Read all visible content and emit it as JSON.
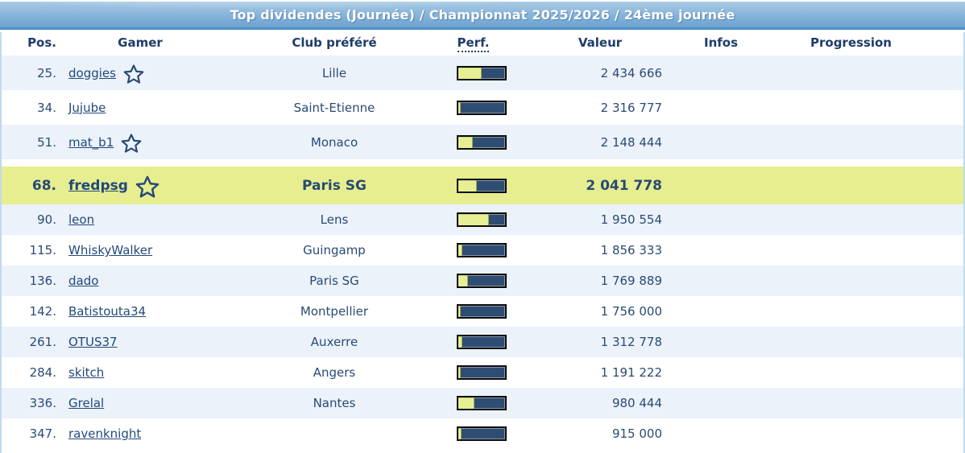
{
  "title": "Top dividendes (Journée) / Championnat 2025/2026 / 24ème journée",
  "columns": [
    {
      "key": "pos",
      "label": "Pos."
    },
    {
      "key": "gamer",
      "label": "Gamer"
    },
    {
      "key": "club",
      "label": "Club préféré"
    },
    {
      "key": "perf",
      "label": "Perf."
    },
    {
      "key": "valeur",
      "label": "Valeur"
    },
    {
      "key": "infos",
      "label": "Infos"
    },
    {
      "key": "progression",
      "label": "Progression"
    }
  ],
  "rows": [
    {
      "pos": "25.",
      "gamer": "doggies",
      "star": true,
      "club": "Lille",
      "perf_pct": 50,
      "valeur": "2 434 666",
      "infos": "",
      "progression": "",
      "highlight": false
    },
    {
      "pos": "34.",
      "gamer": "Jujube",
      "star": false,
      "club": "Saint-Etienne",
      "perf_pct": 6,
      "valeur": "2 316 777",
      "infos": "",
      "progression": "",
      "highlight": false
    },
    {
      "pos": "51.",
      "gamer": "mat_b1",
      "star": true,
      "club": "Monaco",
      "perf_pct": 32,
      "valeur": "2 148 444",
      "infos": "",
      "progression": "",
      "highlight": false
    },
    {
      "pos": "68.",
      "gamer": "fredpsg",
      "star": true,
      "club": "Paris SG",
      "perf_pct": 40,
      "valeur": "2 041 778",
      "infos": "",
      "progression": "",
      "highlight": true
    },
    {
      "pos": "90.",
      "gamer": "leon",
      "star": false,
      "club": "Lens",
      "perf_pct": 67,
      "valeur": "1 950 554",
      "infos": "",
      "progression": "",
      "highlight": false
    },
    {
      "pos": "115.",
      "gamer": "WhiskyWalker",
      "star": false,
      "club": "Guingamp",
      "perf_pct": 9,
      "valeur": "1 856 333",
      "infos": "",
      "progression": "",
      "highlight": false
    },
    {
      "pos": "136.",
      "gamer": "dado",
      "star": false,
      "club": "Paris SG",
      "perf_pct": 22,
      "valeur": "1 769 889",
      "infos": "",
      "progression": "",
      "highlight": false
    },
    {
      "pos": "142.",
      "gamer": "Batistouta34",
      "star": false,
      "club": "Montpellier",
      "perf_pct": 6,
      "valeur": "1 756 000",
      "infos": "",
      "progression": "",
      "highlight": false
    },
    {
      "pos": "261.",
      "gamer": "OTUS37",
      "star": false,
      "club": "Auxerre",
      "perf_pct": 9,
      "valeur": "1 312 778",
      "infos": "",
      "progression": "",
      "highlight": false
    },
    {
      "pos": "284.",
      "gamer": "skitch",
      "star": false,
      "club": "Angers",
      "perf_pct": 6,
      "valeur": "1 191 222",
      "infos": "",
      "progression": "",
      "highlight": false
    },
    {
      "pos": "336.",
      "gamer": "Grelal",
      "star": false,
      "club": "Nantes",
      "perf_pct": 36,
      "valeur": "980 444",
      "infos": "",
      "progression": "",
      "highlight": false
    },
    {
      "pos": "347.",
      "gamer": "ravenknight",
      "star": false,
      "club": "",
      "perf_pct": 8,
      "valeur": "915 000",
      "infos": "",
      "progression": "",
      "highlight": false
    }
  ],
  "colors": {
    "title_text": "#FFFFFF",
    "title_top": "#A9CBE5",
    "title_bottom": "#6BA3CF",
    "title_edge": "#4F8FC4",
    "header_text": "#1E3C6B",
    "text": "#2A4A74",
    "link": "#23497B",
    "row_alt_bg": "#EBF2FA",
    "row_white_bg": "#FFFFFF",
    "highlight_bg": "#E6EE90",
    "bar_fill": "#E7EF94",
    "bar_bg": "#2E4D72",
    "bar_border": "#0B0B0B",
    "side_border": "#BFDAEE"
  }
}
